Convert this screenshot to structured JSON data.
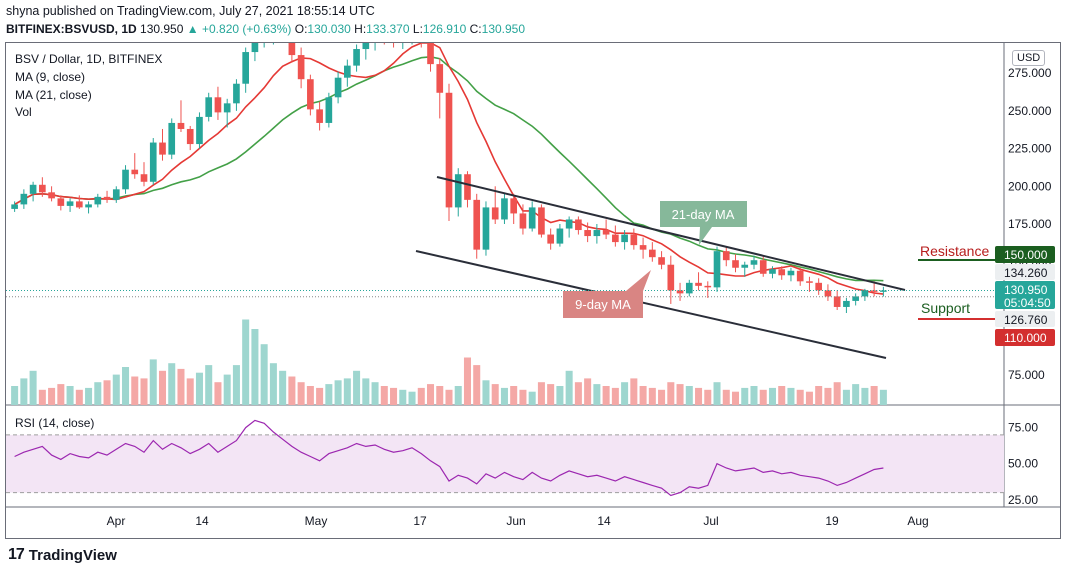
{
  "header": {
    "publisher": "shyna published on TradingView.com, July 27, 2021 18:55:14 UTC",
    "symbol": "BITFINEX:BSVUSD, 1D",
    "last": "130.950",
    "arrow": "▲",
    "change": "+0.820 (+0.63%)",
    "o_label": "O:",
    "o_value": "130.030",
    "h_label": "H:",
    "h_value": "133.370",
    "l_label": "L:",
    "l_value": "126.910",
    "c_label": "C:",
    "c_value": "130.950"
  },
  "legend": {
    "title": "BSV / Dollar, 1D, BITFINEX",
    "ma9": "MA (9, close)",
    "ma21": "MA (21, close)",
    "vol": "Vol",
    "rsi": "RSI (14, close)"
  },
  "currency_button": "USD",
  "footer": {
    "logo_mark": "17",
    "brand": "TradingView"
  },
  "colors": {
    "up": "#26a69a",
    "down": "#ef5350",
    "ma9": "#e53935",
    "ma21": "#43a047",
    "rsi": "#9c27b0",
    "rsi_band": "#f3e5f5",
    "channel": "#2a2e39",
    "support": "#d32f2f",
    "resistance": "#1b5e20"
  },
  "chart_data": {
    "type": "candlestick",
    "price_axis": {
      "ylim": [
        55,
        295
      ],
      "ticks": [
        "275.000",
        "250.000",
        "225.000",
        "200.000",
        "175.000",
        "150.000",
        "75.000"
      ]
    },
    "x_axis": {
      "ticks": [
        "Apr",
        "14",
        "May",
        "17",
        "Jun",
        "14",
        "Jul",
        "19",
        "Aug"
      ]
    },
    "rsi_axis": {
      "ylim": [
        20,
        90
      ],
      "ticks": [
        "75.00",
        "50.00",
        "25.00"
      ],
      "band": [
        30,
        70
      ]
    },
    "price_labels": {
      "resistance": "150.000",
      "r_price": "134.260",
      "current": "130.950",
      "countdown": "05:04:50",
      "s_price": "126.760",
      "support": "110.000"
    },
    "annotations": {
      "resistance": "Resistance",
      "support": "Support",
      "ma21": "21-day MA",
      "ma9": "9-day MA"
    },
    "candles": [
      [
        185,
        190,
        183,
        188
      ],
      [
        188,
        198,
        185,
        195
      ],
      [
        195,
        203,
        190,
        201
      ],
      [
        201,
        206,
        193,
        196
      ],
      [
        196,
        200,
        190,
        192
      ],
      [
        192,
        194,
        184,
        187
      ],
      [
        187,
        192,
        183,
        190
      ],
      [
        190,
        194,
        185,
        186
      ],
      [
        186,
        190,
        182,
        188
      ],
      [
        188,
        195,
        186,
        193
      ],
      [
        193,
        197,
        189,
        191
      ],
      [
        191,
        200,
        189,
        198
      ],
      [
        198,
        214,
        195,
        211
      ],
      [
        211,
        222,
        205,
        208
      ],
      [
        208,
        216,
        200,
        203
      ],
      [
        203,
        232,
        201,
        229
      ],
      [
        229,
        238,
        217,
        221
      ],
      [
        221,
        245,
        218,
        242
      ],
      [
        242,
        257,
        236,
        238
      ],
      [
        238,
        240,
        224,
        228
      ],
      [
        228,
        249,
        225,
        246
      ],
      [
        246,
        262,
        243,
        259
      ],
      [
        259,
        266,
        244,
        249
      ],
      [
        249,
        258,
        239,
        255
      ],
      [
        255,
        271,
        250,
        268
      ],
      [
        268,
        292,
        262,
        289
      ],
      [
        289,
        300,
        283,
        296
      ],
      [
        296,
        302,
        292,
        298
      ],
      [
        298,
        303,
        294,
        300
      ],
      [
        300,
        305,
        297,
        302
      ],
      [
        300,
        305,
        282,
        287
      ],
      [
        287,
        292,
        265,
        271
      ],
      [
        271,
        274,
        247,
        251
      ],
      [
        251,
        256,
        237,
        242
      ],
      [
        242,
        262,
        239,
        259
      ],
      [
        259,
        276,
        255,
        272
      ],
      [
        272,
        284,
        266,
        280
      ],
      [
        280,
        294,
        276,
        291
      ],
      [
        291,
        300,
        284,
        297
      ],
      [
        297,
        302,
        290,
        299
      ],
      [
        299,
        302,
        294,
        298
      ],
      [
        298,
        300,
        292,
        296
      ],
      [
        296,
        300,
        291,
        298
      ],
      [
        298,
        302,
        294,
        300
      ],
      [
        300,
        303,
        292,
        296
      ],
      [
        296,
        300,
        276,
        281
      ],
      [
        281,
        285,
        245,
        262
      ],
      [
        262,
        268,
        177,
        186
      ],
      [
        186,
        212,
        180,
        208
      ],
      [
        208,
        210,
        186,
        191
      ],
      [
        191,
        195,
        152,
        158
      ],
      [
        158,
        190,
        154,
        186
      ],
      [
        186,
        200,
        175,
        178
      ],
      [
        178,
        195,
        175,
        192
      ],
      [
        192,
        195,
        175,
        182
      ],
      [
        182,
        188,
        168,
        172
      ],
      [
        172,
        190,
        170,
        186
      ],
      [
        186,
        188,
        166,
        168
      ],
      [
        168,
        172,
        158,
        162
      ],
      [
        162,
        175,
        160,
        172
      ],
      [
        172,
        180,
        166,
        178
      ],
      [
        178,
        180,
        168,
        171
      ],
      [
        171,
        176,
        163,
        167
      ],
      [
        167,
        175,
        162,
        171
      ],
      [
        171,
        178,
        165,
        168
      ],
      [
        168,
        174,
        160,
        163
      ],
      [
        163,
        171,
        158,
        168
      ],
      [
        168,
        172,
        158,
        161
      ],
      [
        161,
        166,
        152,
        158
      ],
      [
        158,
        163,
        150,
        153
      ],
      [
        153,
        157,
        145,
        148
      ],
      [
        148,
        154,
        122,
        131
      ],
      [
        131,
        136,
        124,
        129
      ],
      [
        129,
        138,
        127,
        136
      ],
      [
        136,
        143,
        131,
        134
      ],
      [
        134,
        137,
        126,
        133
      ],
      [
        133,
        160,
        130,
        157
      ],
      [
        157,
        160,
        147,
        151
      ],
      [
        151,
        155,
        143,
        146
      ],
      [
        146,
        150,
        140,
        148
      ],
      [
        148,
        154,
        145,
        151
      ],
      [
        151,
        154,
        140,
        142
      ],
      [
        142,
        147,
        139,
        145
      ],
      [
        145,
        147,
        138,
        141
      ],
      [
        141,
        146,
        137,
        144
      ],
      [
        144,
        146,
        134,
        137
      ],
      [
        137,
        140,
        130,
        136
      ],
      [
        136,
        139,
        128,
        131
      ],
      [
        131,
        135,
        124,
        127
      ],
      [
        127,
        131,
        118,
        120
      ],
      [
        120,
        126,
        116,
        124
      ],
      [
        124,
        129,
        121,
        127
      ],
      [
        127,
        132,
        124,
        131
      ],
      [
        131,
        137,
        127,
        130
      ],
      [
        130.03,
        133.37,
        126.91,
        130.95
      ]
    ],
    "volumes": [
      10,
      14,
      18,
      8,
      9,
      11,
      10,
      8,
      9,
      12,
      13,
      16,
      20,
      15,
      14,
      24,
      18,
      22,
      19,
      14,
      17,
      21,
      12,
      16,
      21,
      45,
      40,
      32,
      22,
      18,
      15,
      12,
      10,
      9,
      11,
      13,
      14,
      18,
      14,
      12,
      10,
      9,
      8,
      7,
      9,
      11,
      10,
      8,
      10,
      25,
      21,
      13,
      11,
      9,
      10,
      8,
      7,
      12,
      11,
      10,
      18,
      12,
      14,
      11,
      10,
      9,
      12,
      14,
      10,
      9,
      8,
      12,
      11,
      10,
      9,
      8,
      12,
      8,
      7,
      9,
      10,
      8,
      9,
      10,
      9,
      8,
      7,
      10,
      9,
      12,
      8,
      11,
      9,
      10,
      8
    ],
    "volume_up_flags": [
      true,
      true,
      true,
      false,
      false,
      false,
      true,
      false,
      true,
      true,
      false,
      true,
      true,
      false,
      false,
      true,
      false,
      true,
      false,
      false,
      true,
      true,
      false,
      true,
      true,
      true,
      true,
      true,
      true,
      true,
      false,
      false,
      false,
      false,
      true,
      true,
      true,
      true,
      true,
      true,
      false,
      false,
      true,
      true,
      false,
      false,
      false,
      false,
      true,
      false,
      false,
      true,
      false,
      true,
      false,
      false,
      true,
      false,
      false,
      true,
      true,
      false,
      false,
      true,
      false,
      false,
      true,
      false,
      false,
      false,
      false,
      false,
      false,
      true,
      false,
      false,
      true,
      false,
      false,
      true,
      true,
      false,
      true,
      false,
      true,
      false,
      false,
      false,
      false,
      false,
      true,
      true,
      true,
      false,
      true
    ],
    "rsi": [
      55,
      58,
      60,
      62,
      56,
      53,
      57,
      55,
      54,
      58,
      56,
      60,
      64,
      62,
      58,
      66,
      60,
      64,
      61,
      57,
      60,
      64,
      58,
      62,
      66,
      75,
      80,
      78,
      72,
      67,
      62,
      58,
      55,
      52,
      57,
      59,
      61,
      64,
      62,
      63,
      60,
      58,
      59,
      61,
      57,
      52,
      48,
      38,
      42,
      40,
      36,
      43,
      40,
      44,
      41,
      39,
      44,
      40,
      38,
      42,
      45,
      43,
      41,
      42,
      40,
      38,
      41,
      39,
      37,
      35,
      33,
      28,
      30,
      34,
      33,
      35,
      50,
      47,
      45,
      46,
      47,
      44,
      45,
      43,
      44,
      42,
      41,
      40,
      38,
      35,
      37,
      40,
      43,
      46,
      47
    ]
  }
}
